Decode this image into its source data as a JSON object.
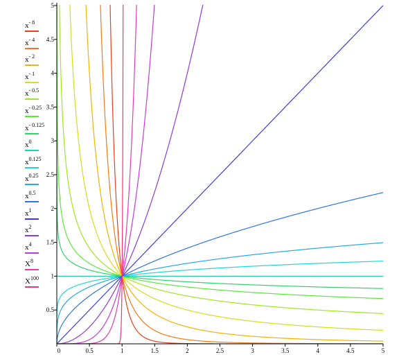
{
  "chart_data": {
    "type": "line",
    "title": "",
    "xlabel": "",
    "ylabel": "",
    "xlim": [
      0,
      5
    ],
    "ylim": [
      0,
      5
    ],
    "grid": false,
    "legend_position": "left",
    "x_ticks": [
      "0",
      "0.5",
      "1",
      "1.5",
      "2",
      "2.5",
      "3",
      "3.5",
      "4",
      "4.5",
      "5"
    ],
    "y_ticks": [
      "0.5",
      "1",
      "1.5",
      "2",
      "2.5",
      "3",
      "3.5",
      "4",
      "4.5",
      "5"
    ],
    "series": [
      {
        "name": "x^-8",
        "base": "x",
        "exponent_label": "- 8",
        "exponent": -8,
        "color": "#e8401c"
      },
      {
        "name": "x^-4",
        "base": "x",
        "exponent_label": "- 4",
        "exponent": -4,
        "color": "#f47a10"
      },
      {
        "name": "x^-2",
        "base": "x",
        "exponent_label": "- 2",
        "exponent": -2,
        "color": "#f0b400"
      },
      {
        "name": "x^-1",
        "base": "x",
        "exponent_label": "- 1",
        "exponent": -1,
        "color": "#d8dc1a"
      },
      {
        "name": "x^-0.5",
        "base": "x",
        "exponent_label": "- 0.5",
        "exponent": -0.5,
        "color": "#9ee81e"
      },
      {
        "name": "x^-0.25",
        "base": "x",
        "exponent_label": "- 0.25",
        "exponent": -0.25,
        "color": "#5ae83a"
      },
      {
        "name": "x^-0.125",
        "base": "x",
        "exponent_label": "- 0.125",
        "exponent": -0.125,
        "color": "#2ed36a"
      },
      {
        "name": "x^0",
        "base": "x",
        "exponent_label": "0",
        "exponent": 0,
        "color": "#1ed2a8"
      },
      {
        "name": "x^0.125",
        "base": "x",
        "exponent_label": "0.125",
        "exponent": 0.125,
        "color": "#1ed6d6"
      },
      {
        "name": "x^0.25",
        "base": "x",
        "exponent_label": "0.25",
        "exponent": 0.25,
        "color": "#24a8e6"
      },
      {
        "name": "x^0.5",
        "base": "x",
        "exponent_label": "0.5",
        "exponent": 0.5,
        "color": "#2e74e0"
      },
      {
        "name": "x^1",
        "base": "x",
        "exponent_label": "1",
        "exponent": 1,
        "color": "#3a3ed8"
      },
      {
        "name": "x^2",
        "base": "x",
        "exponent_label": "2",
        "exponent": 2,
        "color": "#8e3ad8"
      },
      {
        "name": "x^4",
        "base": "x",
        "exponent_label": "4",
        "exponent": 4,
        "color": "#c43ad8"
      },
      {
        "name": "X^8",
        "base": "X",
        "exponent_label": "8",
        "exponent": 8,
        "color": "#e23ab4"
      },
      {
        "name": "X^100",
        "base": "X",
        "exponent_label": "100",
        "exponent": 100,
        "color": "#e83a6e"
      }
    ]
  }
}
